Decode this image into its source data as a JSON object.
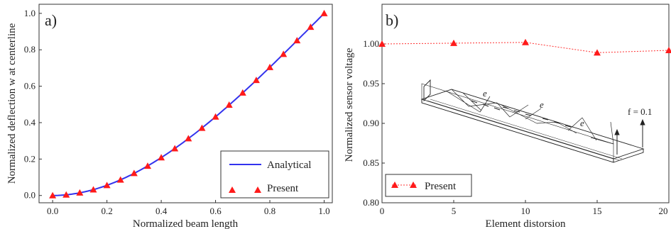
{
  "chart_data": [
    {
      "panel": "a)",
      "type": "line",
      "xlabel": "Normalized beam length",
      "ylabel": "Normalized deflection w at centerline",
      "xlim": [
        -0.05,
        1.03
      ],
      "ylim": [
        -0.04,
        1.05
      ],
      "xticks": [
        "0.0",
        "0.2",
        "0.4",
        "0.6",
        "0.8",
        "1.0"
      ],
      "yticks": [
        "0.0",
        "0.2",
        "0.4",
        "0.6",
        "0.8",
        "1.0"
      ],
      "legend_position": "bottom-right",
      "series": [
        {
          "name": "Analytical",
          "kind": "line",
          "color": "#3333ee",
          "function": "y = 1.5x^2 - 0.5x^3",
          "x_range": [
            0,
            1
          ]
        },
        {
          "name": "Present",
          "kind": "markers",
          "color": "#ff1a1a",
          "x": [
            0,
            0.05,
            0.1,
            0.15,
            0.2,
            0.25,
            0.3,
            0.35,
            0.4,
            0.45,
            0.5,
            0.55,
            0.6,
            0.65,
            0.7,
            0.75,
            0.8,
            0.85,
            0.9,
            0.95,
            1.0
          ],
          "y": [
            0.0,
            0.004,
            0.015,
            0.032,
            0.056,
            0.086,
            0.122,
            0.162,
            0.208,
            0.258,
            0.313,
            0.37,
            0.432,
            0.497,
            0.564,
            0.633,
            0.704,
            0.776,
            0.851,
            0.925,
            1.0
          ]
        }
      ]
    },
    {
      "panel": "b)",
      "type": "line",
      "xlabel": "Element distorsion",
      "ylabel": "Normalized sensor voltage",
      "xlim": [
        0,
        20
      ],
      "ylim": [
        0.8,
        1.05
      ],
      "xticks": [
        "0",
        "5",
        "10",
        "15",
        "20"
      ],
      "yticks": [
        "0.80",
        "0.85",
        "0.90",
        "0.95",
        "1.00"
      ],
      "legend_position": "bottom-left",
      "series": [
        {
          "name": "Present",
          "kind": "markers-dashed",
          "color": "#ff1a1a",
          "x": [
            0,
            5,
            10,
            15,
            20
          ],
          "y": [
            1.0,
            1.001,
            1.002,
            0.989,
            0.992
          ]
        }
      ],
      "inset": {
        "labels": [
          "e",
          "e",
          "e"
        ],
        "force_label": "f = 0.1"
      }
    }
  ]
}
